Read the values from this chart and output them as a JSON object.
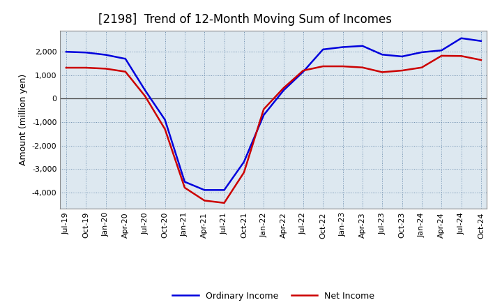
{
  "title": "[2198]  Trend of 12-Month Moving Sum of Incomes",
  "ylabel": "Amount (million yen)",
  "background_color": "#ffffff",
  "grid_color": "#6688aa",
  "plot_bg_color": "#dde8f0",
  "ordinary_income_color": "#0000dd",
  "net_income_color": "#cc0000",
  "ordinary_income_label": "Ordinary Income",
  "net_income_label": "Net Income",
  "x_labels": [
    "Jul-19",
    "Oct-19",
    "Jan-20",
    "Apr-20",
    "Jul-20",
    "Oct-20",
    "Jan-21",
    "Apr-21",
    "Jul-21",
    "Oct-21",
    "Jan-22",
    "Apr-22",
    "Jul-22",
    "Oct-22",
    "Jan-23",
    "Apr-23",
    "Jul-23",
    "Oct-23",
    "Jan-24",
    "Apr-24",
    "Jul-24",
    "Oct-24"
  ],
  "ordinary_income": [
    2000,
    1970,
    1870,
    1700,
    350,
    -900,
    -3550,
    -3900,
    -3900,
    -2700,
    -700,
    350,
    1150,
    2100,
    2200,
    2250,
    1880,
    1800,
    1980,
    2060,
    2580,
    2460
  ],
  "net_income": [
    1320,
    1320,
    1280,
    1150,
    100,
    -1300,
    -3800,
    -4350,
    -4450,
    -3150,
    -450,
    450,
    1200,
    1380,
    1380,
    1330,
    1130,
    1200,
    1330,
    1830,
    1820,
    1650
  ],
  "ylim": [
    -4700,
    2900
  ],
  "yticks": [
    -4000,
    -3000,
    -2000,
    -1000,
    0,
    1000,
    2000
  ],
  "title_fontsize": 12,
  "axis_fontsize": 9,
  "tick_fontsize": 8,
  "legend_fontsize": 9,
  "line_width": 1.8
}
